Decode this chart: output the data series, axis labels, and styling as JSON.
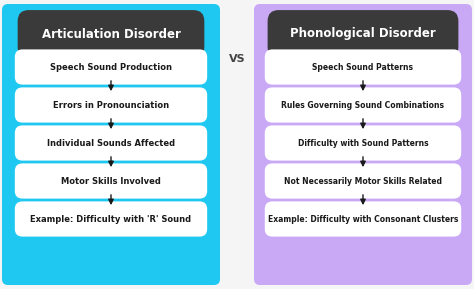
{
  "left_bg": "#1EC8F0",
  "right_bg": "#C9A8F5",
  "header_bg": "#3A3A3A",
  "box_bg": "#FFFFFF",
  "outer_bg": "#F5F5F5",
  "header_text_color": "#FFFFFF",
  "box_text_color": "#1a1a1a",
  "arrow_color": "#1a1a1a",
  "vs_color": "#444444",
  "left_title": "Articulation Disorder",
  "right_title": "Phonological Disorder",
  "vs_text": "VS",
  "left_items": [
    "Speech Sound Production",
    "Errors in Pronounciation",
    "Individual Sounds Affected",
    "Motor Skills Involved",
    "Example: Difficulty with 'R' Sound"
  ],
  "right_items": [
    "Speech Sound Patterns",
    "Rules Governing Sound Combinations",
    "Difficulty with Sound Patterns",
    "Not Necessarily Motor Skills Related",
    "Example: Difficulty with Consonant Clusters"
  ],
  "fig_width": 4.74,
  "fig_height": 2.89,
  "dpi": 100
}
